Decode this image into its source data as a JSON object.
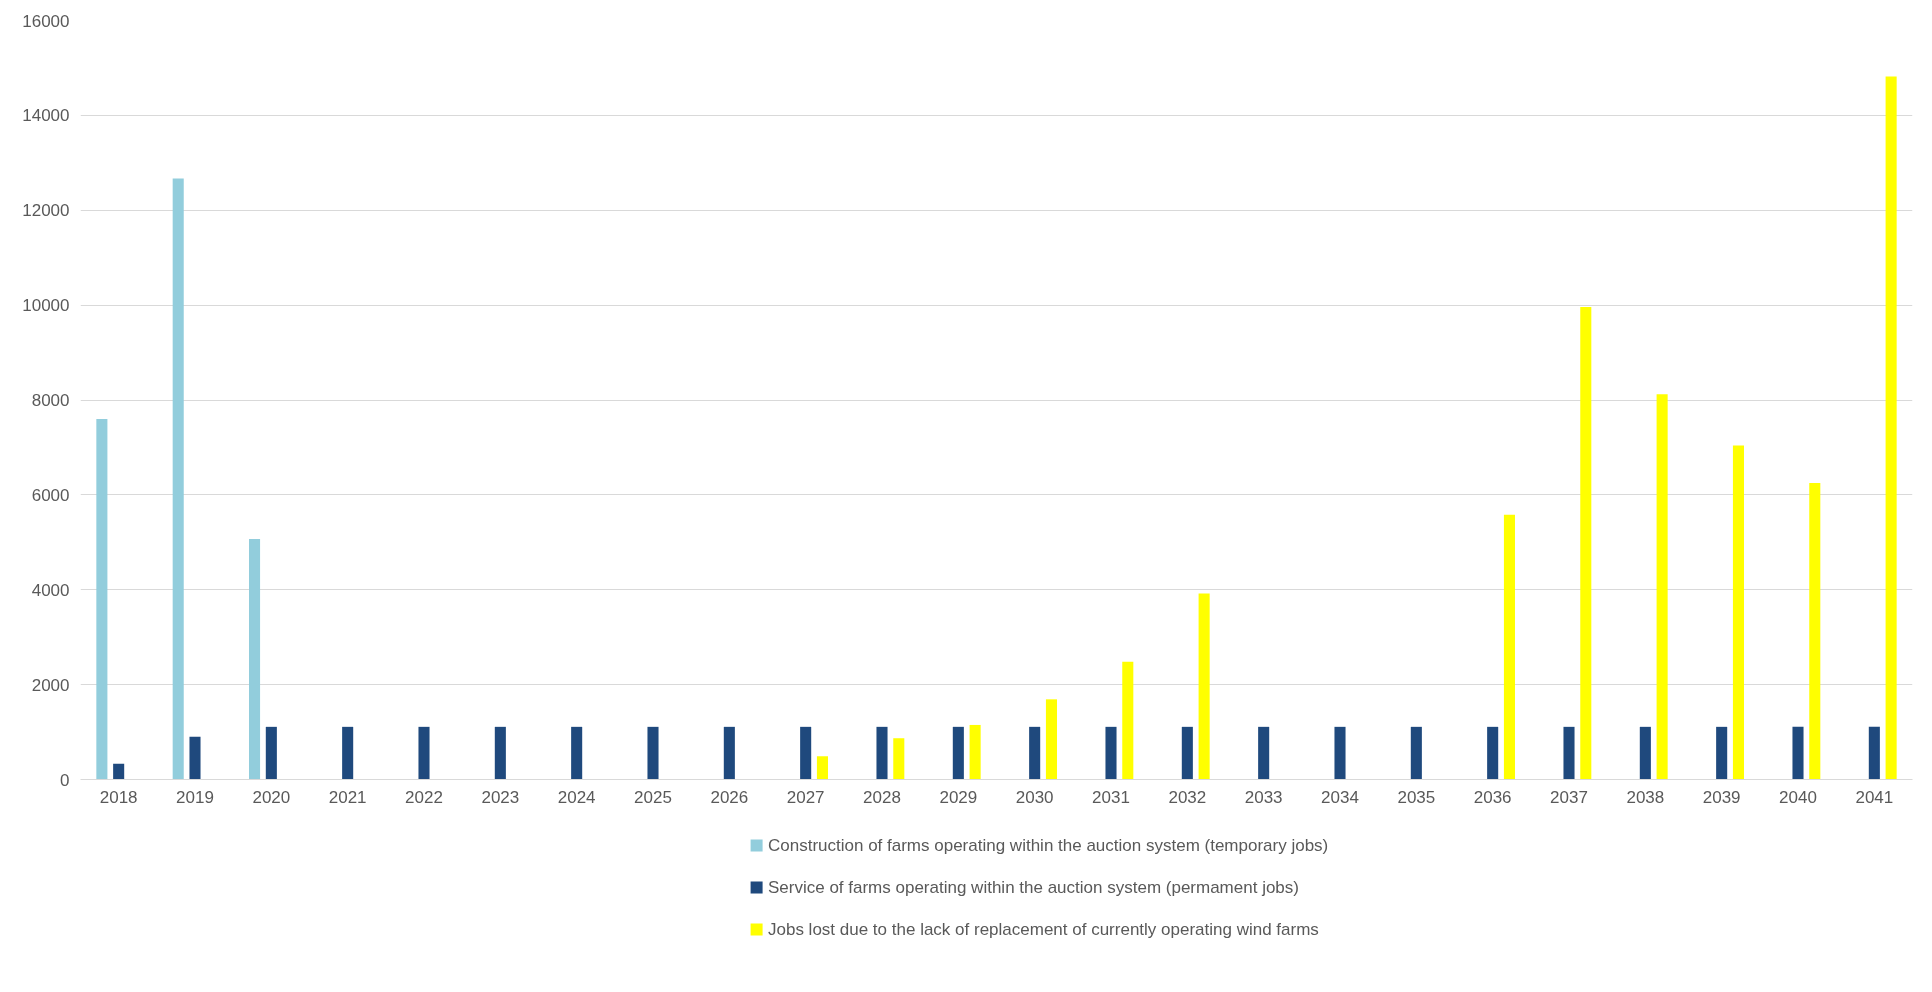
{
  "chart_data": {
    "type": "bar",
    "categories": [
      "2018",
      "2019",
      "2020",
      "2021",
      "2022",
      "2023",
      "2024",
      "2025",
      "2026",
      "2027",
      "2028",
      "2029",
      "2030",
      "2031",
      "2032",
      "2033",
      "2034",
      "2035",
      "2036",
      "2037",
      "2038",
      "2039",
      "2040",
      "2041"
    ],
    "series": [
      {
        "name": "Construction of farms operating within the auction system (temporary jobs)",
        "color": "#92cddc",
        "values": [
          7600,
          12670,
          5070,
          null,
          null,
          null,
          null,
          null,
          null,
          null,
          null,
          null,
          null,
          null,
          null,
          null,
          null,
          null,
          null,
          null,
          null,
          null,
          null,
          null
        ]
      },
      {
        "name": "Service of farms operating within the auction system (permament jobs)",
        "color": "#1f497d",
        "values": [
          330,
          900,
          1110,
          1110,
          1110,
          1110,
          1110,
          1110,
          1110,
          1110,
          1110,
          1110,
          1110,
          1110,
          1110,
          1110,
          1110,
          1110,
          1110,
          1110,
          1110,
          1110,
          1110,
          1110
        ]
      },
      {
        "name": "Jobs lost due to the lack of replacement of currently operating wind farms",
        "color": "#ffff00",
        "values": [
          null,
          null,
          null,
          null,
          null,
          null,
          null,
          null,
          null,
          490,
          870,
          1150,
          1690,
          2480,
          3920,
          null,
          null,
          null,
          5580,
          9960,
          8120,
          7040,
          6250,
          14820
        ]
      }
    ],
    "ylim": [
      0,
      16000
    ],
    "yticks": [
      0,
      2000,
      4000,
      6000,
      8000,
      10000,
      12000,
      14000,
      16000
    ],
    "grid": "y",
    "legend": "bottom"
  }
}
